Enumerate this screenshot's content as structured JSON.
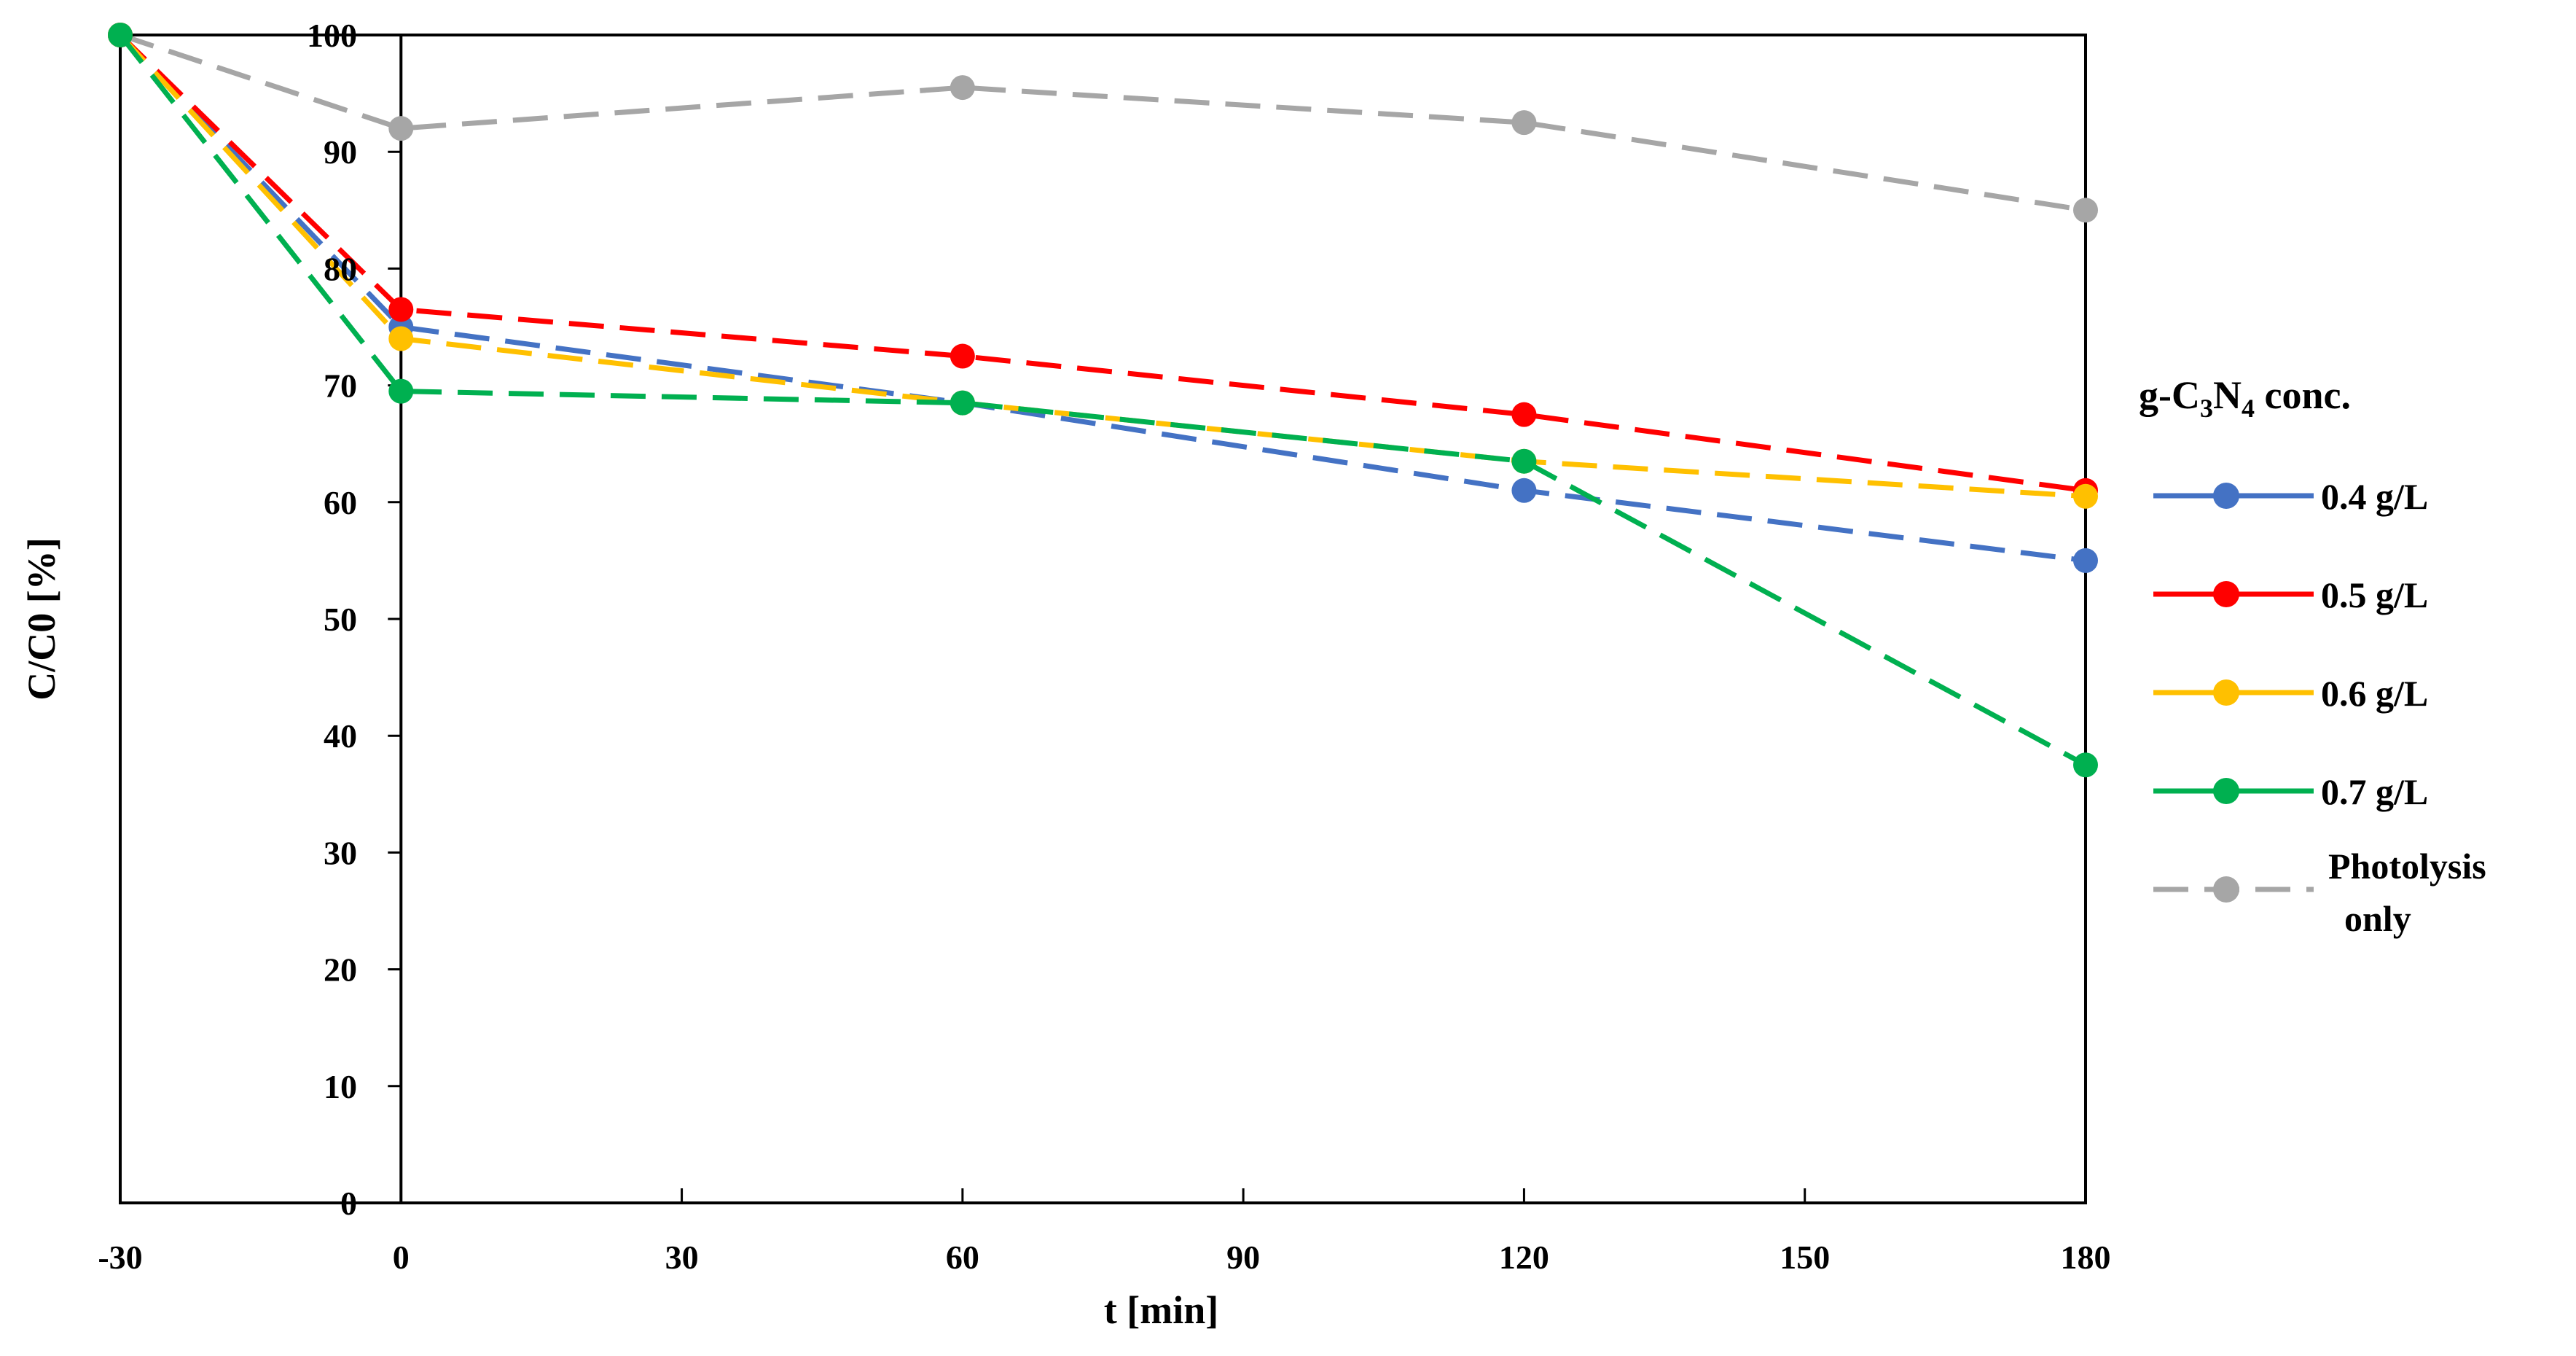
{
  "chart_data": {
    "type": "line",
    "xlabel": "t [min]",
    "ylabel": "C/C0 [%]",
    "xlim": [
      -30,
      180
    ],
    "ylim": [
      0,
      100
    ],
    "xticks": [
      -30,
      0,
      30,
      60,
      90,
      120,
      150,
      180
    ],
    "yticks": [
      0,
      10,
      20,
      30,
      40,
      50,
      60,
      70,
      80,
      90,
      100
    ],
    "legend_title": "g-C₃N₄ conc.",
    "legend_position": "right",
    "grid": false,
    "series": [
      {
        "name": "0.4 g/L",
        "color": "#4472c4",
        "x": [
          -30,
          0,
          60,
          120,
          180
        ],
        "values": [
          100,
          75,
          68.5,
          61,
          55
        ]
      },
      {
        "name": "0.5 g/L",
        "color": "#ff0000",
        "x": [
          -30,
          0,
          60,
          120,
          180
        ],
        "values": [
          100,
          76.5,
          72.5,
          67.5,
          61
        ]
      },
      {
        "name": "0.6 g/L",
        "color": "#ffc000",
        "x": [
          -30,
          0,
          60,
          120,
          180
        ],
        "values": [
          100,
          74,
          68.5,
          63.5,
          60.5
        ]
      },
      {
        "name": "0.7 g/L",
        "color": "#00b050",
        "x": [
          -30,
          0,
          60,
          120,
          180
        ],
        "values": [
          100,
          69.5,
          68.5,
          63.5,
          37.5
        ]
      },
      {
        "name": "Photolysis only",
        "name_lines": [
          "Photolysis",
          "only"
        ],
        "color": "#a6a6a6",
        "x": [
          -30,
          0,
          60,
          120,
          180
        ],
        "values": [
          100,
          92,
          95.5,
          92.5,
          85
        ]
      }
    ]
  }
}
